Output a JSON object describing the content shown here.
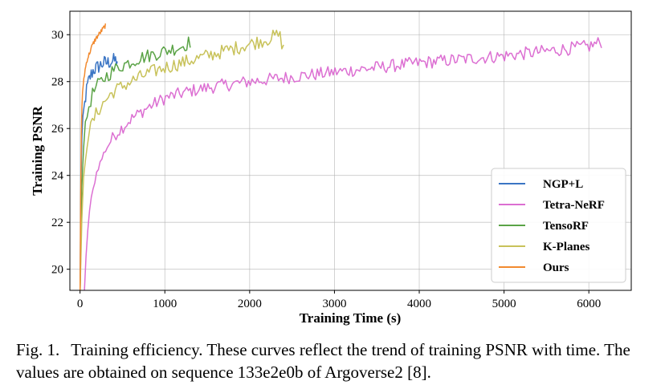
{
  "chart_data": {
    "type": "line",
    "xlabel": "Training Time (s)",
    "ylabel": "Training PSNR",
    "xlim": [
      -120,
      6500
    ],
    "ylim": [
      19.1,
      31.0
    ],
    "xticks": [
      0,
      1000,
      2000,
      3000,
      4000,
      5000,
      6000
    ],
    "yticks": [
      20,
      22,
      24,
      26,
      28,
      30
    ],
    "grid": true,
    "legend_position": "lower-right",
    "series": [
      {
        "name": "NGP+L",
        "color": "#3b75c4",
        "x": [
          0,
          10,
          20,
          40,
          60,
          80,
          100,
          130,
          160,
          200,
          240,
          280,
          320,
          360,
          400,
          440
        ],
        "y": [
          19.0,
          23.5,
          25.5,
          26.6,
          27.2,
          27.7,
          28.0,
          28.3,
          28.5,
          28.6,
          28.7,
          28.8,
          28.8,
          28.85,
          28.9,
          28.9
        ],
        "noise": 0.32
      },
      {
        "name": "Tetra-NeRF",
        "color": "#dc6fd2",
        "x": [
          50,
          80,
          120,
          200,
          300,
          400,
          600,
          800,
          1000,
          1300,
          1600,
          2000,
          2500,
          3000,
          3500,
          4000,
          4500,
          5000,
          5500,
          6000,
          6150
        ],
        "y": [
          19.0,
          21.2,
          22.8,
          24.2,
          25.1,
          25.7,
          26.4,
          26.9,
          27.3,
          27.6,
          27.8,
          28.0,
          28.2,
          28.4,
          28.6,
          28.8,
          28.95,
          29.1,
          29.3,
          29.5,
          29.7
        ],
        "noise": 0.28
      },
      {
        "name": "TensoRF",
        "color": "#5aa346",
        "x": [
          0,
          15,
          30,
          60,
          100,
          150,
          200,
          300,
          400,
          500,
          600,
          700,
          800,
          900,
          1000,
          1100,
          1200,
          1250,
          1300
        ],
        "y": [
          19.0,
          22.8,
          24.8,
          26.0,
          26.9,
          27.5,
          27.8,
          28.2,
          28.5,
          28.7,
          28.85,
          29.0,
          29.1,
          29.2,
          29.3,
          29.4,
          29.5,
          29.6,
          29.7
        ],
        "noise": 0.3
      },
      {
        "name": "K-Planes",
        "color": "#c8c25a",
        "x": [
          0,
          20,
          40,
          70,
          100,
          150,
          200,
          300,
          400,
          600,
          800,
          1000,
          1200,
          1400,
          1600,
          1800,
          2000,
          2200,
          2350,
          2400
        ],
        "y": [
          19.0,
          22.0,
          23.8,
          25.0,
          25.8,
          26.3,
          26.7,
          27.2,
          27.6,
          28.0,
          28.35,
          28.6,
          28.8,
          29.0,
          29.2,
          29.4,
          29.6,
          29.8,
          30.0,
          29.4
        ],
        "noise": 0.3
      },
      {
        "name": "Ours",
        "color": "#f28a2f",
        "x": [
          0,
          8,
          15,
          25,
          40,
          60,
          80,
          110,
          140,
          180,
          220,
          260,
          300
        ],
        "y": [
          19.0,
          23.5,
          25.8,
          27.2,
          28.0,
          28.5,
          28.9,
          29.2,
          29.5,
          29.8,
          30.0,
          30.2,
          30.4
        ],
        "noise": 0.1
      }
    ]
  },
  "caption": {
    "label": "Fig. 1.",
    "text": "Training efficiency. These curves reflect the trend of training PSNR with time. The values are obtained on sequence 133e2e0b of Argoverse2 [8]."
  }
}
